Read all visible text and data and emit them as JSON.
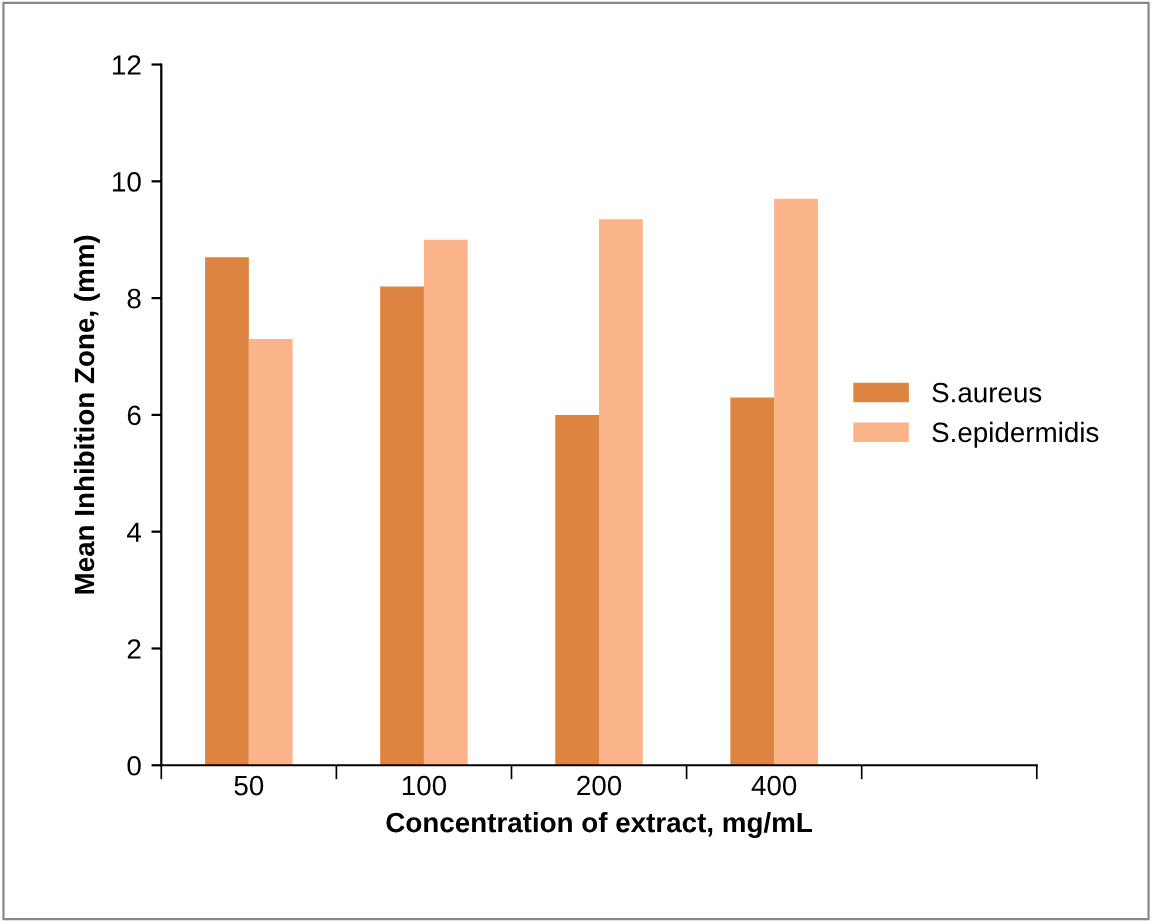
{
  "chart_data": {
    "type": "bar",
    "xlabel": "Concentration of extract, mg/mL",
    "ylabel": "Mean Inhibition Zone, (mm)",
    "categories": [
      "50",
      "100",
      "200",
      "400",
      null
    ],
    "series": [
      {
        "name": "S.aureus",
        "color": "#dd8540",
        "values": [
          8.7,
          8.2,
          6.0,
          6.3,
          null
        ]
      },
      {
        "name": "S.epidermidis",
        "color": "#fbb48a",
        "values": [
          7.3,
          9.0,
          9.35,
          9.7,
          null
        ]
      }
    ],
    "ylim": [
      0,
      12
    ],
    "yticks": [
      0,
      2,
      4,
      6,
      8,
      10,
      12
    ],
    "grid": false,
    "legend": "right"
  }
}
